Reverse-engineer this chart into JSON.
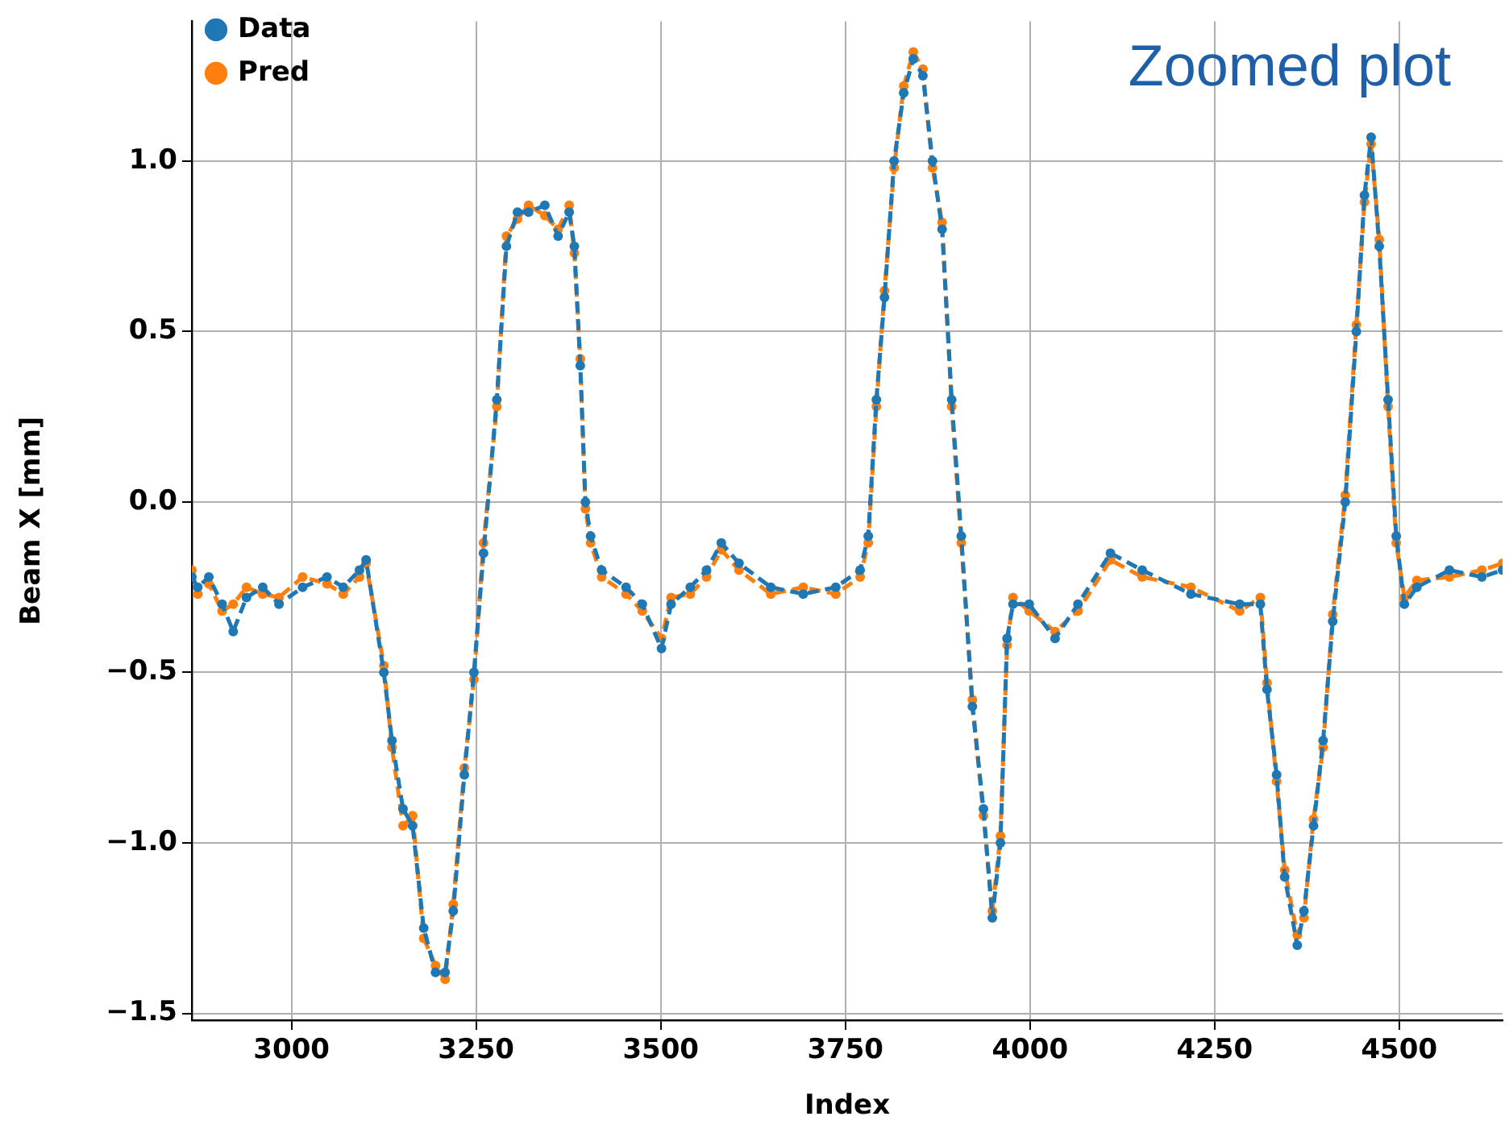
{
  "chart_data": {
    "type": "line",
    "xlabel": "Index",
    "ylabel": "Beam X [mm]",
    "annotations": [
      "Zoomed plot"
    ],
    "xlim": [
      2865,
      4640
    ],
    "ylim": [
      -1.52,
      1.41
    ],
    "xticks": [
      3000,
      3250,
      3500,
      3750,
      4000,
      4250,
      4500
    ],
    "yticks": [
      {
        "value": -1.5,
        "label": "−1.5"
      },
      {
        "value": -1.0,
        "label": "−1.0"
      },
      {
        "value": -0.5,
        "label": "−0.5"
      },
      {
        "value": 0,
        "label": "0.0"
      },
      {
        "value": 0.5,
        "label": "0.5"
      },
      {
        "value": 1.0,
        "label": "1.0"
      }
    ],
    "grid": true,
    "legend": "top left",
    "marker": "circle",
    "line_style": "dashed",
    "series": [
      {
        "name": "Data",
        "color": "#1f77b4",
        "x": [
          2865,
          2873,
          2888,
          2906,
          2921,
          2939,
          2961,
          2983,
          3015,
          3048,
          3070,
          3092,
          3101,
          3125,
          3136,
          3151,
          3164,
          3179,
          3195,
          3208,
          3219,
          3234,
          3247,
          3260,
          3278,
          3291,
          3306,
          3321,
          3343,
          3361,
          3376,
          3383,
          3391,
          3398,
          3405,
          3420,
          3453,
          3475,
          3501,
          3514,
          3540,
          3562,
          3582,
          3606,
          3649,
          3693,
          3737,
          3770,
          3781,
          3792,
          3803,
          3816,
          3829,
          3842,
          3855,
          3868,
          3881,
          3894,
          3907,
          3922,
          3937,
          3949,
          3960,
          3969,
          3977,
          3999,
          4034,
          4065,
          4109,
          4152,
          4218,
          4284,
          4312,
          4321,
          4334,
          4345,
          4362,
          4371,
          4384,
          4397,
          4410,
          4427,
          4442,
          4453,
          4462,
          4473,
          4485,
          4496,
          4507,
          4524,
          4568,
          4612,
          4640
        ],
        "values": [
          -0.22,
          -0.25,
          -0.22,
          -0.3,
          -0.38,
          -0.28,
          -0.25,
          -0.3,
          -0.25,
          -0.22,
          -0.25,
          -0.2,
          -0.17,
          -0.5,
          -0.7,
          -0.9,
          -0.95,
          -1.25,
          -1.38,
          -1.38,
          -1.2,
          -0.8,
          -0.5,
          -0.15,
          0.3,
          0.75,
          0.85,
          0.85,
          0.87,
          0.78,
          0.85,
          0.75,
          0.4,
          0.0,
          -0.1,
          -0.2,
          -0.25,
          -0.3,
          -0.43,
          -0.3,
          -0.25,
          -0.2,
          -0.12,
          -0.18,
          -0.25,
          -0.27,
          -0.25,
          -0.2,
          -0.1,
          0.3,
          0.6,
          1.0,
          1.2,
          1.3,
          1.25,
          1.0,
          0.8,
          0.3,
          -0.1,
          -0.6,
          -0.9,
          -1.22,
          -1.0,
          -0.4,
          -0.3,
          -0.3,
          -0.4,
          -0.3,
          -0.15,
          -0.2,
          -0.27,
          -0.3,
          -0.3,
          -0.55,
          -0.8,
          -1.1,
          -1.3,
          -1.2,
          -0.95,
          -0.7,
          -0.35,
          0.0,
          0.5,
          0.9,
          1.07,
          0.75,
          0.3,
          -0.1,
          -0.3,
          -0.25,
          -0.2,
          -0.22,
          -0.2
        ]
      },
      {
        "name": "Pred",
        "color": "#ff7f0e",
        "x": [
          2865,
          2873,
          2888,
          2906,
          2921,
          2939,
          2961,
          2983,
          3015,
          3048,
          3070,
          3092,
          3101,
          3125,
          3136,
          3151,
          3164,
          3179,
          3195,
          3208,
          3219,
          3234,
          3247,
          3260,
          3278,
          3291,
          3306,
          3321,
          3343,
          3361,
          3376,
          3383,
          3391,
          3398,
          3405,
          3420,
          3453,
          3475,
          3501,
          3514,
          3540,
          3562,
          3582,
          3606,
          3649,
          3693,
          3737,
          3770,
          3781,
          3792,
          3803,
          3816,
          3829,
          3842,
          3855,
          3868,
          3881,
          3894,
          3907,
          3922,
          3937,
          3949,
          3960,
          3969,
          3977,
          3999,
          4034,
          4065,
          4109,
          4152,
          4218,
          4284,
          4312,
          4321,
          4334,
          4345,
          4362,
          4371,
          4384,
          4397,
          4410,
          4427,
          4442,
          4453,
          4462,
          4473,
          4485,
          4496,
          4507,
          4524,
          4568,
          4612,
          4640
        ],
        "values": [
          -0.2,
          -0.27,
          -0.24,
          -0.32,
          -0.3,
          -0.25,
          -0.27,
          -0.28,
          -0.22,
          -0.24,
          -0.27,
          -0.22,
          -0.18,
          -0.48,
          -0.72,
          -0.95,
          -0.92,
          -1.28,
          -1.36,
          -1.4,
          -1.18,
          -0.78,
          -0.52,
          -0.12,
          0.28,
          0.78,
          0.83,
          0.87,
          0.84,
          0.8,
          0.87,
          0.73,
          0.42,
          -0.02,
          -0.12,
          -0.22,
          -0.27,
          -0.32,
          -0.4,
          -0.28,
          -0.27,
          -0.22,
          -0.14,
          -0.2,
          -0.27,
          -0.25,
          -0.27,
          -0.22,
          -0.12,
          0.28,
          0.62,
          0.98,
          1.22,
          1.32,
          1.27,
          0.98,
          0.82,
          0.28,
          -0.12,
          -0.58,
          -0.92,
          -1.2,
          -0.98,
          -0.42,
          -0.28,
          -0.32,
          -0.38,
          -0.32,
          -0.17,
          -0.22,
          -0.25,
          -0.32,
          -0.28,
          -0.53,
          -0.82,
          -1.08,
          -1.27,
          -1.22,
          -0.93,
          -0.72,
          -0.33,
          0.02,
          0.52,
          0.88,
          1.05,
          0.77,
          0.28,
          -0.12,
          -0.28,
          -0.23,
          -0.22,
          -0.2,
          -0.18
        ]
      }
    ]
  }
}
